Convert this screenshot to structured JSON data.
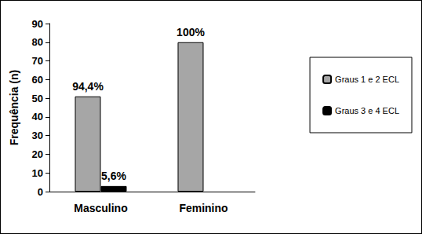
{
  "chart_data": {
    "type": "bar",
    "categories": [
      "Masculino",
      "Feminino"
    ],
    "series": [
      {
        "name": "Graus 1 e 2 ECL",
        "color": "#a6a6a6",
        "values": [
          51,
          80
        ]
      },
      {
        "name": "Graus 3 e 4 ECL",
        "color": "#000000",
        "values": [
          3,
          null
        ]
      }
    ],
    "annotations": [
      {
        "series": "Graus 1 e 2 ECL",
        "category": "Masculino",
        "text": "94,4%"
      },
      {
        "series": "Graus 3 e 4 ECL",
        "category": "Masculino",
        "text": "5,6%"
      },
      {
        "series": "Graus 1 e 2 ECL",
        "category": "Feminino",
        "text": "100%"
      }
    ],
    "y_label": "Frequência (n)",
    "ylim": [
      0,
      90
    ],
    "yticks": [
      0,
      10,
      20,
      30,
      40,
      50,
      60,
      70,
      80,
      90
    ],
    "grid": false,
    "legend": "right"
  }
}
